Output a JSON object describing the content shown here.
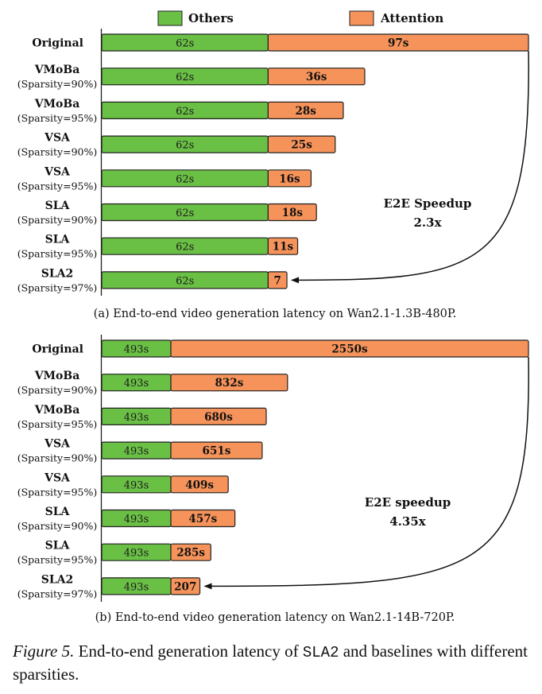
{
  "legend": {
    "others_label": "Others",
    "attention_label": "Attention",
    "others_color": "#6abf45",
    "attention_color": "#f5935a"
  },
  "chart_data": [
    {
      "type": "bar",
      "subtype": "horizontal-stacked",
      "title": "(a) End-to-end video generation latency on Wan2.1-1.3B-480P.",
      "categories": [
        [
          "Original",
          ""
        ],
        [
          "VMoBa",
          "(Sparsity=90%)"
        ],
        [
          "VMoBa",
          "(Sparsity=95%)"
        ],
        [
          "VSA",
          "(Sparsity=90%)"
        ],
        [
          "VSA",
          "(Sparsity=95%)"
        ],
        [
          "SLA",
          "(Sparsity=90%)"
        ],
        [
          "SLA",
          "(Sparsity=95%)"
        ],
        [
          "SLA2",
          "(Sparsity=97%)"
        ]
      ],
      "series": [
        {
          "name": "Others",
          "values": [
            62,
            62,
            62,
            62,
            62,
            62,
            62,
            62
          ],
          "labels": [
            "62s",
            "62s",
            "62s",
            "62s",
            "62s",
            "62s",
            "62s",
            "62s"
          ]
        },
        {
          "name": "Attention",
          "values": [
            97,
            36,
            28,
            25,
            16,
            18,
            11,
            7
          ],
          "labels": [
            "97s",
            "36s",
            "28s",
            "25s",
            "16s",
            "18s",
            "11s",
            "7"
          ]
        }
      ],
      "xlim": [
        0,
        159
      ],
      "annotation": {
        "line1": "E2E Speedup",
        "line2": "2.3x"
      }
    },
    {
      "type": "bar",
      "subtype": "horizontal-stacked",
      "title": "(b) End-to-end video generation latency on Wan2.1-14B-720P.",
      "categories": [
        [
          "Original",
          ""
        ],
        [
          "VMoBa",
          "(Sparsity=90%)"
        ],
        [
          "VMoBa",
          "(Sparsity=95%)"
        ],
        [
          "VSA",
          "(Sparsity=90%)"
        ],
        [
          "VSA",
          "(Sparsity=95%)"
        ],
        [
          "SLA",
          "(Sparsity=90%)"
        ],
        [
          "SLA",
          "(Sparsity=95%)"
        ],
        [
          "SLA2",
          "(Sparsity=97%)"
        ]
      ],
      "series": [
        {
          "name": "Others",
          "values": [
            493,
            493,
            493,
            493,
            493,
            493,
            493,
            493
          ],
          "labels": [
            "493s",
            "493s",
            "493s",
            "493s",
            "493s",
            "493s",
            "493s",
            "493s"
          ]
        },
        {
          "name": "Attention",
          "values": [
            2550,
            832,
            680,
            651,
            409,
            457,
            285,
            207
          ],
          "labels": [
            "2550s",
            "832s",
            "680s",
            "651s",
            "409s",
            "457s",
            "285s",
            "207"
          ]
        }
      ],
      "xlim": [
        0,
        3043
      ],
      "annotation": {
        "line1": "E2E speedup",
        "line2": "4.35x"
      }
    }
  ],
  "caption": {
    "fig_label": "Figure 5.",
    "text_before": " End-to-end generation latency of ",
    "method": "SLA2",
    "text_after": " and baselines with different sparsities."
  }
}
